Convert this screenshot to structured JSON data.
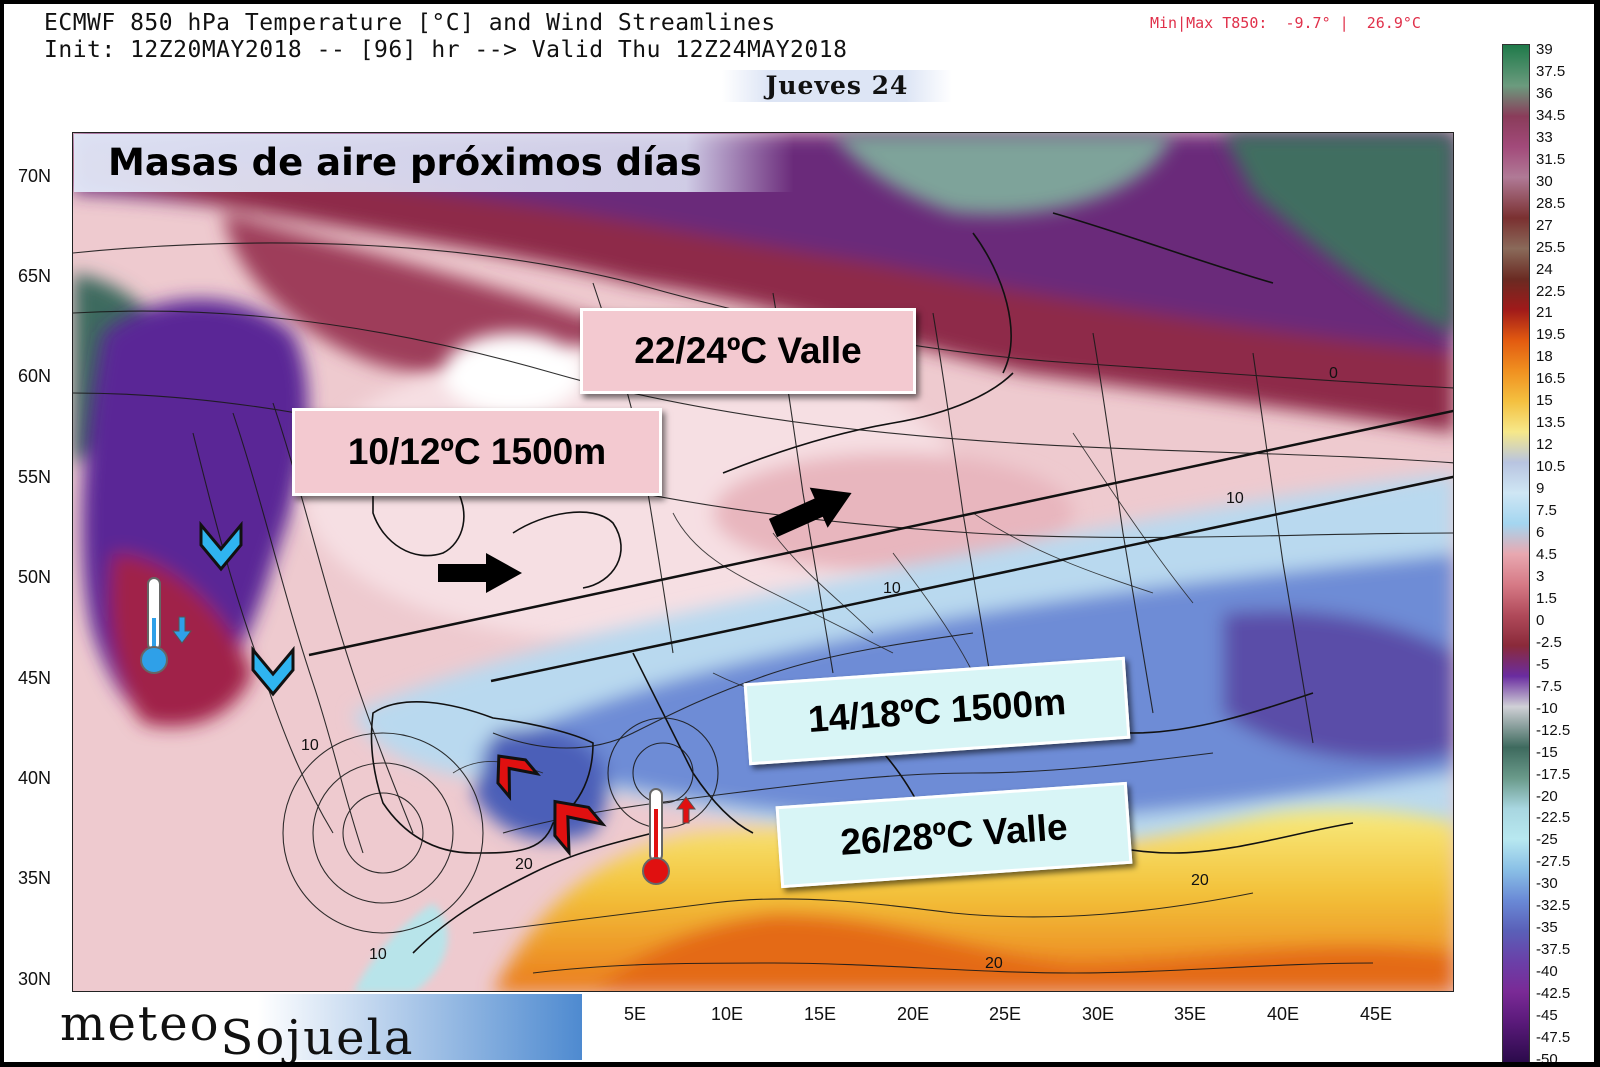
{
  "header": {
    "line1": "ECMWF 850 hPa Temperature [°C] and Wind Streamlines",
    "line2": "Init: 12Z20MAY2018 -- [96] hr --> Valid Thu 12Z24MAY2018",
    "minmax": "Min|Max T850:  -9.7° |  26.9°C",
    "day": "Jueves 24"
  },
  "map": {
    "title": "Masas de aire próximos días",
    "latitude_labels": [
      "70N",
      "65N",
      "60N",
      "55N",
      "50N",
      "45N",
      "40N",
      "35N",
      "30N"
    ],
    "longitude_labels": [
      "5E",
      "10E",
      "15E",
      "20E",
      "25E",
      "30E",
      "35E",
      "40E",
      "45E"
    ],
    "contour_labels": [
      "10",
      "10",
      "10",
      "20",
      "20",
      "20",
      "10",
      "0"
    ],
    "annotations": {
      "north_valley": "22/24ºC Valle",
      "north_1500m": "10/12ºC 1500m",
      "south_1500m": "14/18ºC 1500m",
      "south_valley": "26/28ºC Valle"
    },
    "icons": [
      "thermometer-cold-icon",
      "thermometer-hot-icon",
      "arrow-down-icon",
      "arrow-up-icon",
      "chevron-down-icon",
      "chevron-up-icon",
      "arrow-right-icon"
    ],
    "colors": {
      "warm_air": "#f5d8dc",
      "cold_cold": "#6a2e9a",
      "blue": "#5e78c8",
      "yellow": "#f6e04a",
      "orange": "#ef8a22",
      "ocean_dark": "#3e6a5e",
      "accent_cyan": "#2fb4f0",
      "accent_red": "#e01010"
    }
  },
  "colorbar": {
    "labels": [
      "39",
      "37.5",
      "36",
      "34.5",
      "33",
      "31.5",
      "30",
      "28.5",
      "27",
      "25.5",
      "24",
      "22.5",
      "21",
      "19.5",
      "18",
      "16.5",
      "15",
      "13.5",
      "12",
      "10.5",
      "9",
      "7.5",
      "6",
      "4.5",
      "3",
      "1.5",
      "0",
      "-2.5",
      "-5",
      "-7.5",
      "-10",
      "-12.5",
      "-15",
      "-17.5",
      "-20",
      "-22.5",
      "-25",
      "-27.5",
      "-30",
      "-32.5",
      "-35",
      "-37.5",
      "-40",
      "-42.5",
      "-45",
      "-47.5",
      "-50"
    ]
  },
  "logo": {
    "part1": "meteo",
    "part2": "Sojuela"
  }
}
